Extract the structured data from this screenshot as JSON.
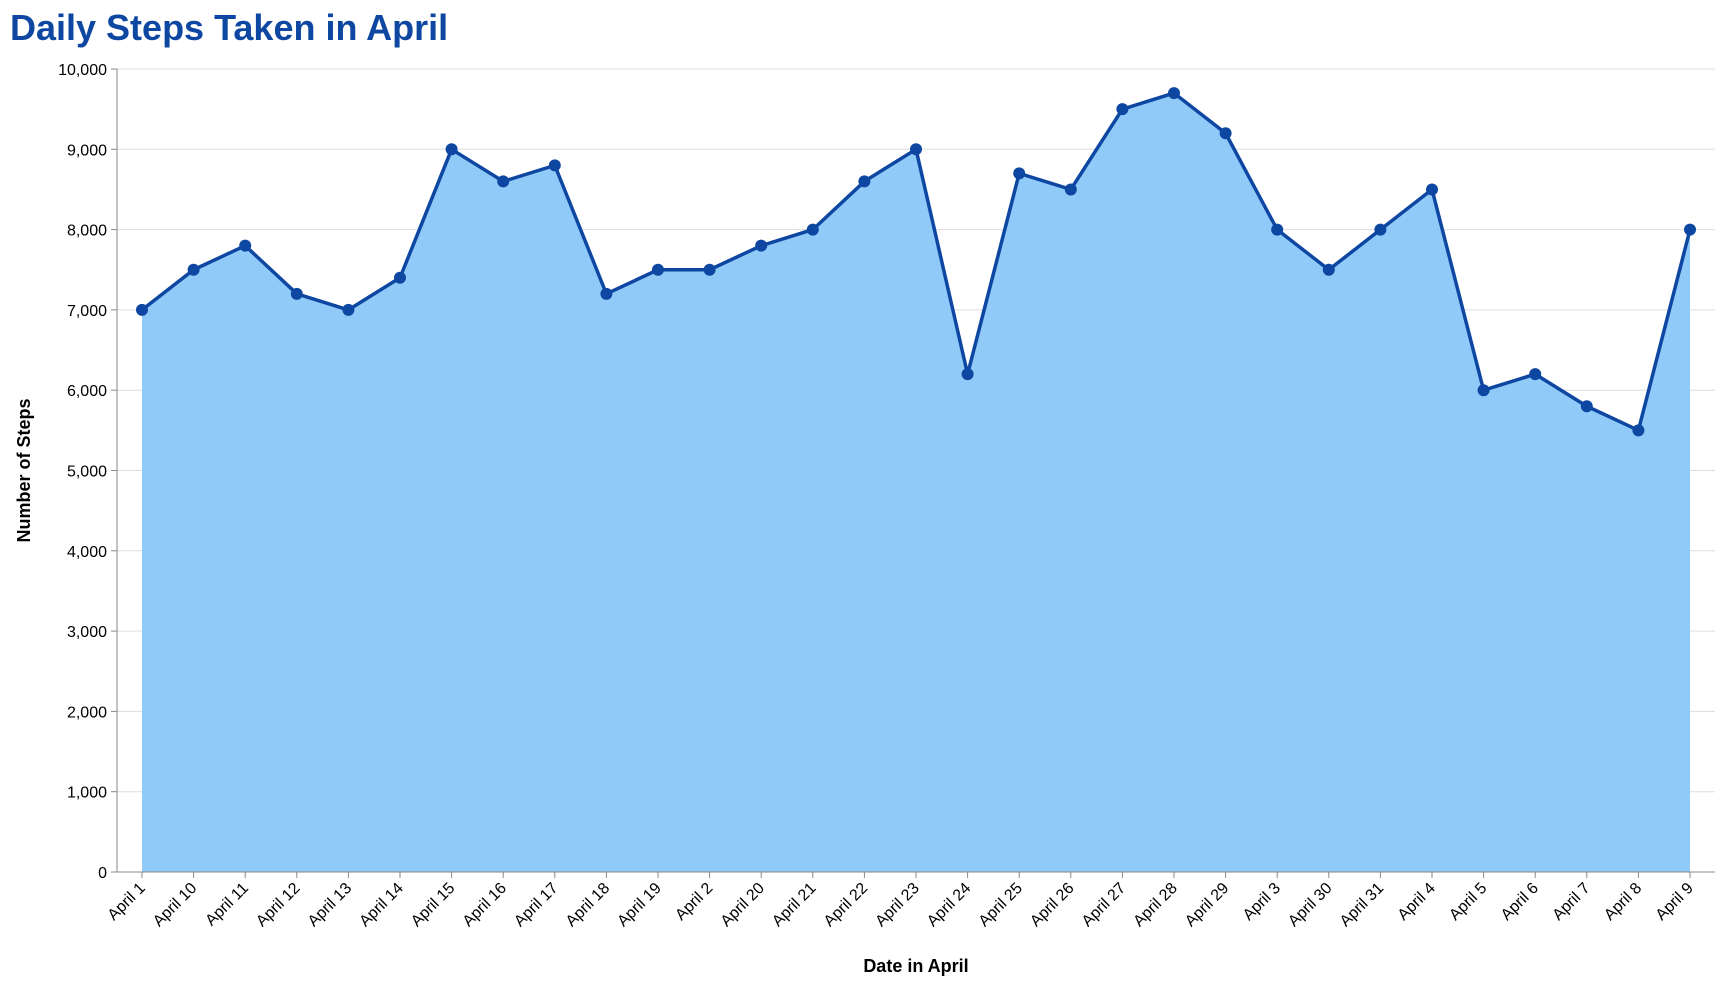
{
  "chart_data": {
    "type": "area",
    "title": "Daily Steps Taken in April",
    "xlabel": "Date in April",
    "ylabel": "Number of Steps",
    "ylim": [
      0,
      10000
    ],
    "y_ticks": [
      "0",
      "1,000",
      "2,000",
      "3,000",
      "4,000",
      "5,000",
      "6,000",
      "7,000",
      "8,000",
      "9,000",
      "10,000"
    ],
    "grid": true,
    "categories": [
      "April 1",
      "April 10",
      "April 11",
      "April 12",
      "April 13",
      "April 14",
      "April 15",
      "April 16",
      "April 17",
      "April 18",
      "April 19",
      "April 2",
      "April 20",
      "April 21",
      "April 22",
      "April 23",
      "April 24",
      "April 25",
      "April 26",
      "April 27",
      "April 28",
      "April 29",
      "April 3",
      "April 30",
      "April 31",
      "April 4",
      "April 5",
      "April 6",
      "April 7",
      "April 8",
      "April 9"
    ],
    "values": [
      7000,
      7500,
      7800,
      7200,
      7000,
      7400,
      9000,
      8600,
      8800,
      7200,
      7500,
      7500,
      7800,
      8000,
      8600,
      9000,
      6200,
      8700,
      8500,
      9500,
      9700,
      9200,
      8000,
      7500,
      8000,
      8500,
      6000,
      6200,
      5800,
      5500,
      8000
    ],
    "colors": {
      "title": "#0D47A1",
      "line": "#0D47A1",
      "point": "#0D47A1",
      "area": "#90CAF9"
    }
  }
}
